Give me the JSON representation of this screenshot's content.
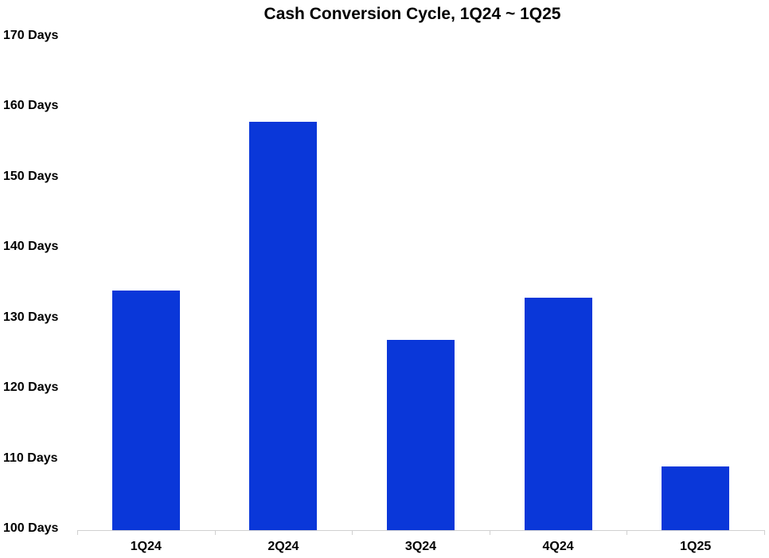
{
  "chart_data": {
    "type": "bar",
    "title": "Cash Conversion Cycle, 1Q24 ~ 1Q25",
    "categories": [
      "1Q24",
      "2Q24",
      "3Q24",
      "4Q24",
      "1Q25"
    ],
    "values": [
      134,
      158,
      127,
      133,
      109
    ],
    "xlabel": "",
    "ylabel": "",
    "ylim": [
      100,
      170
    ],
    "yticks": [
      100,
      110,
      120,
      130,
      140,
      150,
      160,
      170
    ],
    "ytick_labels": [
      "100 Days",
      "110 Days",
      "120 Days",
      "130 Days",
      "140 Days",
      "150 Days",
      "160 Days",
      "170 Days"
    ],
    "grid": false,
    "legend": null,
    "bar_color": "#0a37d9"
  }
}
